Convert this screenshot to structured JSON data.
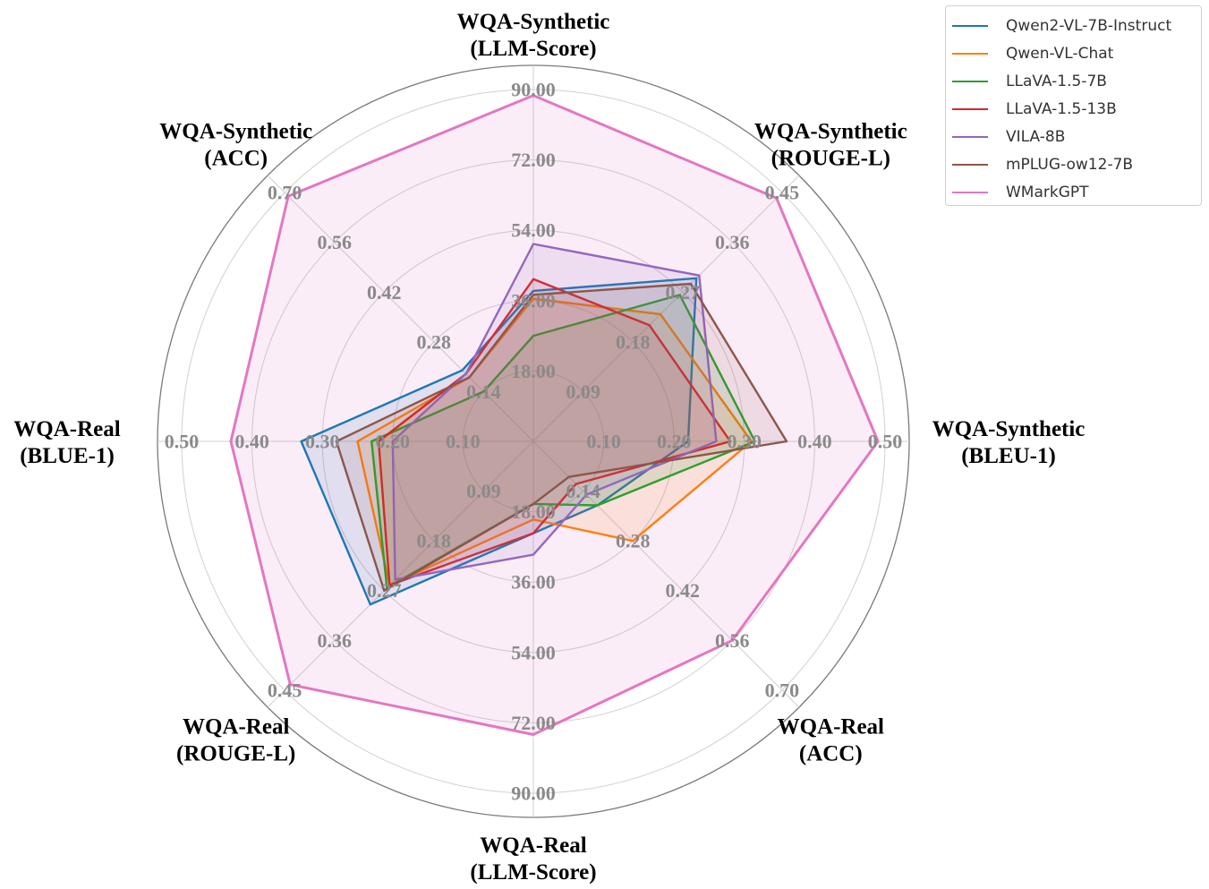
{
  "chart_data": {
    "type": "radar",
    "axes": [
      {
        "label": [
          "WQA-Synthetic",
          "(LLM-Score)"
        ],
        "ticks": [
          "18.00",
          "36.00",
          "54.00",
          "72.00",
          "90.00"
        ],
        "max": 90
      },
      {
        "label": [
          "WQA-Synthetic",
          "(ROUGE-L)"
        ],
        "ticks": [
          "0.09",
          "0.18",
          "0.27",
          "0.36",
          "0.45"
        ],
        "max": 0.45
      },
      {
        "label": [
          "WQA-Synthetic",
          "(BLEU-1)"
        ],
        "ticks": [
          "0.10",
          "0.20",
          "0.30",
          "0.40",
          "0.50"
        ],
        "max": 0.5
      },
      {
        "label": [
          "WQA-Real",
          "(ACC)"
        ],
        "ticks": [
          "0.14",
          "0.28",
          "0.42",
          "0.56",
          "0.70"
        ],
        "max": 0.7
      },
      {
        "label": [
          "WQA-Real",
          "(LLM-Score)"
        ],
        "ticks": [
          "18.00",
          "36.00",
          "54.00",
          "72.00",
          "90.00"
        ],
        "max": 90
      },
      {
        "label": [
          "WQA-Real",
          "(ROUGE-L)"
        ],
        "ticks": [
          "0.09",
          "0.18",
          "0.27",
          "0.36",
          "0.45"
        ],
        "max": 0.45
      },
      {
        "label": [
          "WQA-Real",
          "(BLUE-1)"
        ],
        "ticks": [
          "0.10",
          "0.20",
          "0.30",
          "0.40",
          "0.50"
        ],
        "max": 0.5
      },
      {
        "label": [
          "WQA-Synthetic",
          "(ACC)"
        ],
        "ticks": [
          "0.14",
          "0.28",
          "0.42",
          "0.56",
          "0.70"
        ],
        "max": 0.7
      }
    ],
    "series": [
      {
        "name": "Qwen2-VL-7B-Instruct",
        "color": "#1f77b4",
        "values": [
          38.5,
          0.295,
          0.22,
          0.18,
          23.5,
          0.295,
          0.33,
          0.2
        ]
      },
      {
        "name": "Qwen-VL-Chat",
        "color": "#ff7f0e",
        "values": [
          36.5,
          0.23,
          0.31,
          0.28,
          20.0,
          0.26,
          0.25,
          0.18
        ]
      },
      {
        "name": "LLaVA-1.5-7B",
        "color": "#2ca02c",
        "values": [
          27.0,
          0.265,
          0.315,
          0.18,
          16.0,
          0.265,
          0.23,
          0.14
        ]
      },
      {
        "name": "LLaVA-1.5-13B",
        "color": "#d62728",
        "values": [
          41.5,
          0.21,
          0.28,
          0.12,
          23.5,
          0.26,
          0.22,
          0.19
        ]
      },
      {
        "name": "VILA-8B",
        "color": "#9467bd",
        "values": [
          50.5,
          0.3,
          0.26,
          0.15,
          29.0,
          0.25,
          0.2,
          0.19
        ]
      },
      {
        "name": "mPLUG-ow12-7B",
        "color": "#8c564b",
        "values": [
          37.5,
          0.285,
          0.36,
          0.1,
          16.0,
          0.27,
          0.28,
          0.18
        ]
      },
      {
        "name": "WMarkGPT",
        "color": "#e377c2",
        "values": [
          88.5,
          0.44,
          0.49,
          0.56,
          75.0,
          0.44,
          0.43,
          0.69
        ],
        "fill": true
      }
    ],
    "legend_position": "top-right",
    "grid": true
  }
}
